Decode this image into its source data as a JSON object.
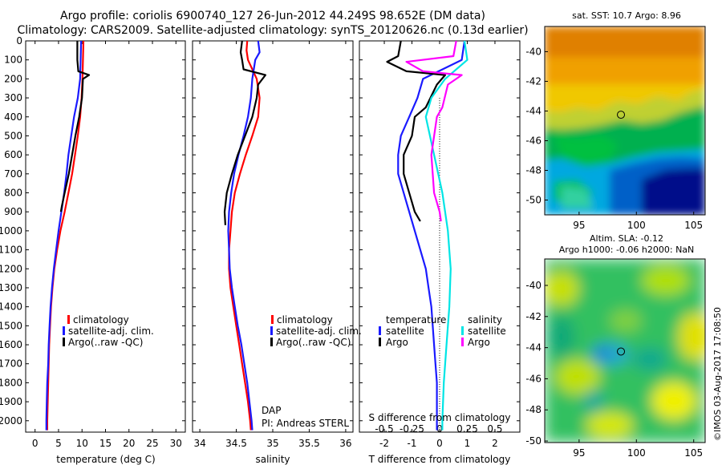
{
  "header": {
    "line1": "Argo profile: coriolis 6900740_127 26-Jun-2012 44.249S 98.652E (DM data)",
    "line2": "Climatology: CARS2009. Satellite-adjusted climatology: synTS_20120626.nc (0.13d earlier)"
  },
  "colors": {
    "climatology": "#ff0000",
    "satellite": "#1a1aff",
    "argo": "#000000",
    "salinity_sat": "#00e5e5",
    "salinity_argo": "#ff00ff"
  },
  "depth_axis": {
    "ticks": [
      0,
      100,
      200,
      300,
      400,
      500,
      600,
      700,
      800,
      900,
      1000,
      1100,
      1200,
      1300,
      1400,
      1500,
      1600,
      1700,
      1800,
      1900,
      2000
    ],
    "range": [
      0,
      2060
    ]
  },
  "chart_data": [
    {
      "id": "temperature",
      "type": "line",
      "xlabel": "temperature (deg C)",
      "xticks": [
        0,
        5,
        10,
        15,
        20,
        25,
        30
      ],
      "xlim": [
        -2,
        32
      ],
      "legend": {
        "placement": "bottom-left",
        "entries": [
          "climatology",
          "satellite-adj. clim.",
          "Argo(..raw -QC)"
        ]
      },
      "series": [
        {
          "name": "climatology",
          "color": "#ff0000",
          "points": [
            [
              10.3,
              0
            ],
            [
              10.2,
              100
            ],
            [
              10.1,
              200
            ],
            [
              9.9,
              300
            ],
            [
              9.6,
              400
            ],
            [
              9.1,
              500
            ],
            [
              8.5,
              600
            ],
            [
              7.9,
              700
            ],
            [
              7.1,
              800
            ],
            [
              6.3,
              900
            ],
            [
              5.4,
              1000
            ],
            [
              4.7,
              1100
            ],
            [
              4.1,
              1200
            ],
            [
              3.7,
              1300
            ],
            [
              3.4,
              1400
            ],
            [
              3.2,
              1500
            ],
            [
              3.0,
              1600
            ],
            [
              2.9,
              1700
            ],
            [
              2.8,
              1800
            ],
            [
              2.7,
              1900
            ],
            [
              2.6,
              2000
            ],
            [
              2.6,
              2050
            ]
          ]
        },
        {
          "name": "satellite-adj. clim.",
          "color": "#1a1aff",
          "points": [
            [
              9.8,
              0
            ],
            [
              9.7,
              100
            ],
            [
              9.6,
              200
            ],
            [
              9.1,
              300
            ],
            [
              8.3,
              400
            ],
            [
              7.7,
              500
            ],
            [
              7.1,
              600
            ],
            [
              6.7,
              700
            ],
            [
              6.2,
              800
            ],
            [
              5.6,
              900
            ],
            [
              5.0,
              1000
            ],
            [
              4.5,
              1100
            ],
            [
              4.0,
              1200
            ],
            [
              3.6,
              1300
            ],
            [
              3.3,
              1400
            ],
            [
              3.1,
              1500
            ],
            [
              2.9,
              1600
            ],
            [
              2.8,
              1700
            ],
            [
              2.6,
              1800
            ],
            [
              2.5,
              1900
            ],
            [
              2.4,
              2000
            ],
            [
              2.4,
              2050
            ]
          ]
        },
        {
          "name": "Argo(..raw -QC)",
          "color": "#000000",
          "points": [
            [
              9.0,
              0
            ],
            [
              9.0,
              100
            ],
            [
              9.2,
              160
            ],
            [
              11.5,
              180
            ],
            [
              10.2,
              200
            ],
            [
              10.0,
              300
            ],
            [
              9.4,
              400
            ],
            [
              8.6,
              500
            ],
            [
              7.9,
              600
            ],
            [
              7.2,
              700
            ],
            [
              6.3,
              800
            ],
            [
              5.7,
              870
            ],
            [
              5.5,
              900
            ]
          ]
        }
      ]
    },
    {
      "id": "salinity",
      "type": "line",
      "xlabel": "salinity",
      "xticks": [
        34,
        34.5,
        35,
        35.5,
        36
      ],
      "xlim": [
        33.9,
        36.1
      ],
      "legend": {
        "placement": "bottom-right",
        "entries": [
          "climatology",
          "satellite-adj. clim.",
          "Argo(..raw -QC)"
        ]
      },
      "annotation": {
        "line1": "DAP",
        "line2": "PI: Andreas STERL"
      },
      "series": [
        {
          "name": "climatology",
          "color": "#ff0000",
          "points": [
            [
              34.65,
              0
            ],
            [
              34.64,
              50
            ],
            [
              34.66,
              100
            ],
            [
              34.78,
              200
            ],
            [
              34.82,
              300
            ],
            [
              34.8,
              400
            ],
            [
              34.72,
              500
            ],
            [
              34.63,
              600
            ],
            [
              34.55,
              700
            ],
            [
              34.48,
              800
            ],
            [
              34.44,
              900
            ],
            [
              34.42,
              1000
            ],
            [
              34.4,
              1100
            ],
            [
              34.4,
              1200
            ],
            [
              34.42,
              1300
            ],
            [
              34.46,
              1400
            ],
            [
              34.5,
              1500
            ],
            [
              34.54,
              1600
            ],
            [
              34.58,
              1700
            ],
            [
              34.62,
              1800
            ],
            [
              34.66,
              1900
            ],
            [
              34.69,
              2000
            ],
            [
              34.7,
              2050
            ]
          ]
        },
        {
          "name": "satellite-adj. clim.",
          "color": "#1a1aff",
          "points": [
            [
              34.8,
              0
            ],
            [
              34.82,
              60
            ],
            [
              34.76,
              100
            ],
            [
              34.72,
              200
            ],
            [
              34.7,
              300
            ],
            [
              34.66,
              400
            ],
            [
              34.6,
              500
            ],
            [
              34.53,
              600
            ],
            [
              34.47,
              700
            ],
            [
              34.43,
              800
            ],
            [
              34.4,
              900
            ],
            [
              34.39,
              1000
            ],
            [
              34.4,
              1100
            ],
            [
              34.41,
              1200
            ],
            [
              34.44,
              1300
            ],
            [
              34.48,
              1400
            ],
            [
              34.52,
              1500
            ],
            [
              34.57,
              1600
            ],
            [
              34.61,
              1700
            ],
            [
              34.65,
              1800
            ],
            [
              34.68,
              1900
            ],
            [
              34.71,
              2000
            ],
            [
              34.72,
              2050
            ]
          ]
        },
        {
          "name": "Argo(..raw -QC)",
          "color": "#000000",
          "points": [
            [
              34.58,
              0
            ],
            [
              34.56,
              60
            ],
            [
              34.58,
              100
            ],
            [
              34.6,
              150
            ],
            [
              34.9,
              180
            ],
            [
              34.8,
              230
            ],
            [
              34.78,
              300
            ],
            [
              34.72,
              400
            ],
            [
              34.62,
              500
            ],
            [
              34.52,
              600
            ],
            [
              34.44,
              700
            ],
            [
              34.37,
              800
            ],
            [
              34.34,
              900
            ],
            [
              34.35,
              970
            ]
          ]
        }
      ]
    },
    {
      "id": "difference",
      "type": "line",
      "xlabel": "T difference from climatology",
      "xlabel_top": "S difference from climatology",
      "xticks": [
        -2,
        -1,
        0,
        1,
        2
      ],
      "xticks_salinity": [
        "-0.5",
        "-0.25",
        "0",
        "0.25",
        "0.5"
      ],
      "xlim": [
        -2.9,
        2.9
      ],
      "legend": {
        "placement": "bottom",
        "temperature_title": "temperature",
        "salinity_title": "salinity",
        "entries": [
          "satellite",
          "Argo",
          "satellite",
          "Argo"
        ]
      },
      "series": [
        {
          "name": "temperature satellite",
          "color": "#1a1aff",
          "points": [
            [
              0.9,
              0
            ],
            [
              0.8,
              100
            ],
            [
              -0.6,
              200
            ],
            [
              -0.8,
              300
            ],
            [
              -1.1,
              400
            ],
            [
              -1.4,
              500
            ],
            [
              -1.5,
              600
            ],
            [
              -1.5,
              700
            ],
            [
              -1.3,
              800
            ],
            [
              -1.1,
              900
            ],
            [
              -0.9,
              1000
            ],
            [
              -0.7,
              1100
            ],
            [
              -0.5,
              1200
            ],
            [
              -0.4,
              1300
            ],
            [
              -0.3,
              1400
            ],
            [
              -0.25,
              1500
            ],
            [
              -0.2,
              1600
            ],
            [
              -0.15,
              1700
            ],
            [
              -0.1,
              1800
            ],
            [
              -0.1,
              1900
            ],
            [
              -0.1,
              2000
            ],
            [
              -0.1,
              2050
            ]
          ]
        },
        {
          "name": "temperature Argo",
          "color": "#000000",
          "points": [
            [
              -1.4,
              0
            ],
            [
              -1.5,
              80
            ],
            [
              -1.9,
              110
            ],
            [
              -1.2,
              160
            ],
            [
              0.2,
              180
            ],
            [
              -0.1,
              230
            ],
            [
              -0.5,
              350
            ],
            [
              -0.9,
              400
            ],
            [
              -1.0,
              500
            ],
            [
              -1.3,
              600
            ],
            [
              -1.3,
              700
            ],
            [
              -1.1,
              800
            ],
            [
              -0.9,
              900
            ],
            [
              -0.7,
              950
            ]
          ]
        },
        {
          "name": "salinity satellite",
          "color": "#00e5e5",
          "points": [
            [
              0.9,
              0
            ],
            [
              1.0,
              100
            ],
            [
              0.2,
              200
            ],
            [
              -0.3,
              300
            ],
            [
              -0.5,
              400
            ],
            [
              -0.2,
              600
            ],
            [
              0.1,
              800
            ],
            [
              0.3,
              1000
            ],
            [
              0.4,
              1200
            ],
            [
              0.35,
              1400
            ],
            [
              0.25,
              1600
            ],
            [
              0.15,
              1800
            ],
            [
              0.1,
              2000
            ],
            [
              0.1,
              2050
            ]
          ]
        },
        {
          "name": "salinity Argo",
          "color": "#ff00ff",
          "points": [
            [
              0.6,
              0
            ],
            [
              0.5,
              80
            ],
            [
              -1.2,
              110
            ],
            [
              -0.6,
              160
            ],
            [
              0.8,
              180
            ],
            [
              0.3,
              230
            ],
            [
              0.1,
              350
            ],
            [
              -0.1,
              400
            ],
            [
              -0.3,
              600
            ],
            [
              -0.2,
              800
            ],
            [
              0.0,
              900
            ],
            [
              0.05,
              950
            ]
          ]
        }
      ]
    },
    {
      "id": "sst-map",
      "type": "heatmap",
      "title": "sat. SST: 10.7  Argo: 8.96",
      "xticks": [
        95,
        100,
        105
      ],
      "yticks": [
        -40,
        -42,
        -44,
        -46,
        -48,
        -50
      ],
      "xlim": [
        92,
        106
      ],
      "ylim": [
        -51,
        -38.3
      ],
      "marker": {
        "lon": 98.652,
        "lat": -44.249
      }
    },
    {
      "id": "sla-map",
      "type": "heatmap",
      "title1": "Altim. SLA: -0.12",
      "title2": "Argo h1000: -0.06  h2000: NaN",
      "xticks": [
        95,
        100,
        105
      ],
      "yticks": [
        -40,
        -42,
        -44,
        -46,
        -48,
        -50
      ],
      "xlim": [
        92,
        106
      ],
      "ylim": [
        -50.1,
        -38.3
      ],
      "marker": {
        "lon": 98.652,
        "lat": -44.249
      }
    }
  ],
  "stamp": "©IMOS 03-Aug-2017 17:08:50"
}
